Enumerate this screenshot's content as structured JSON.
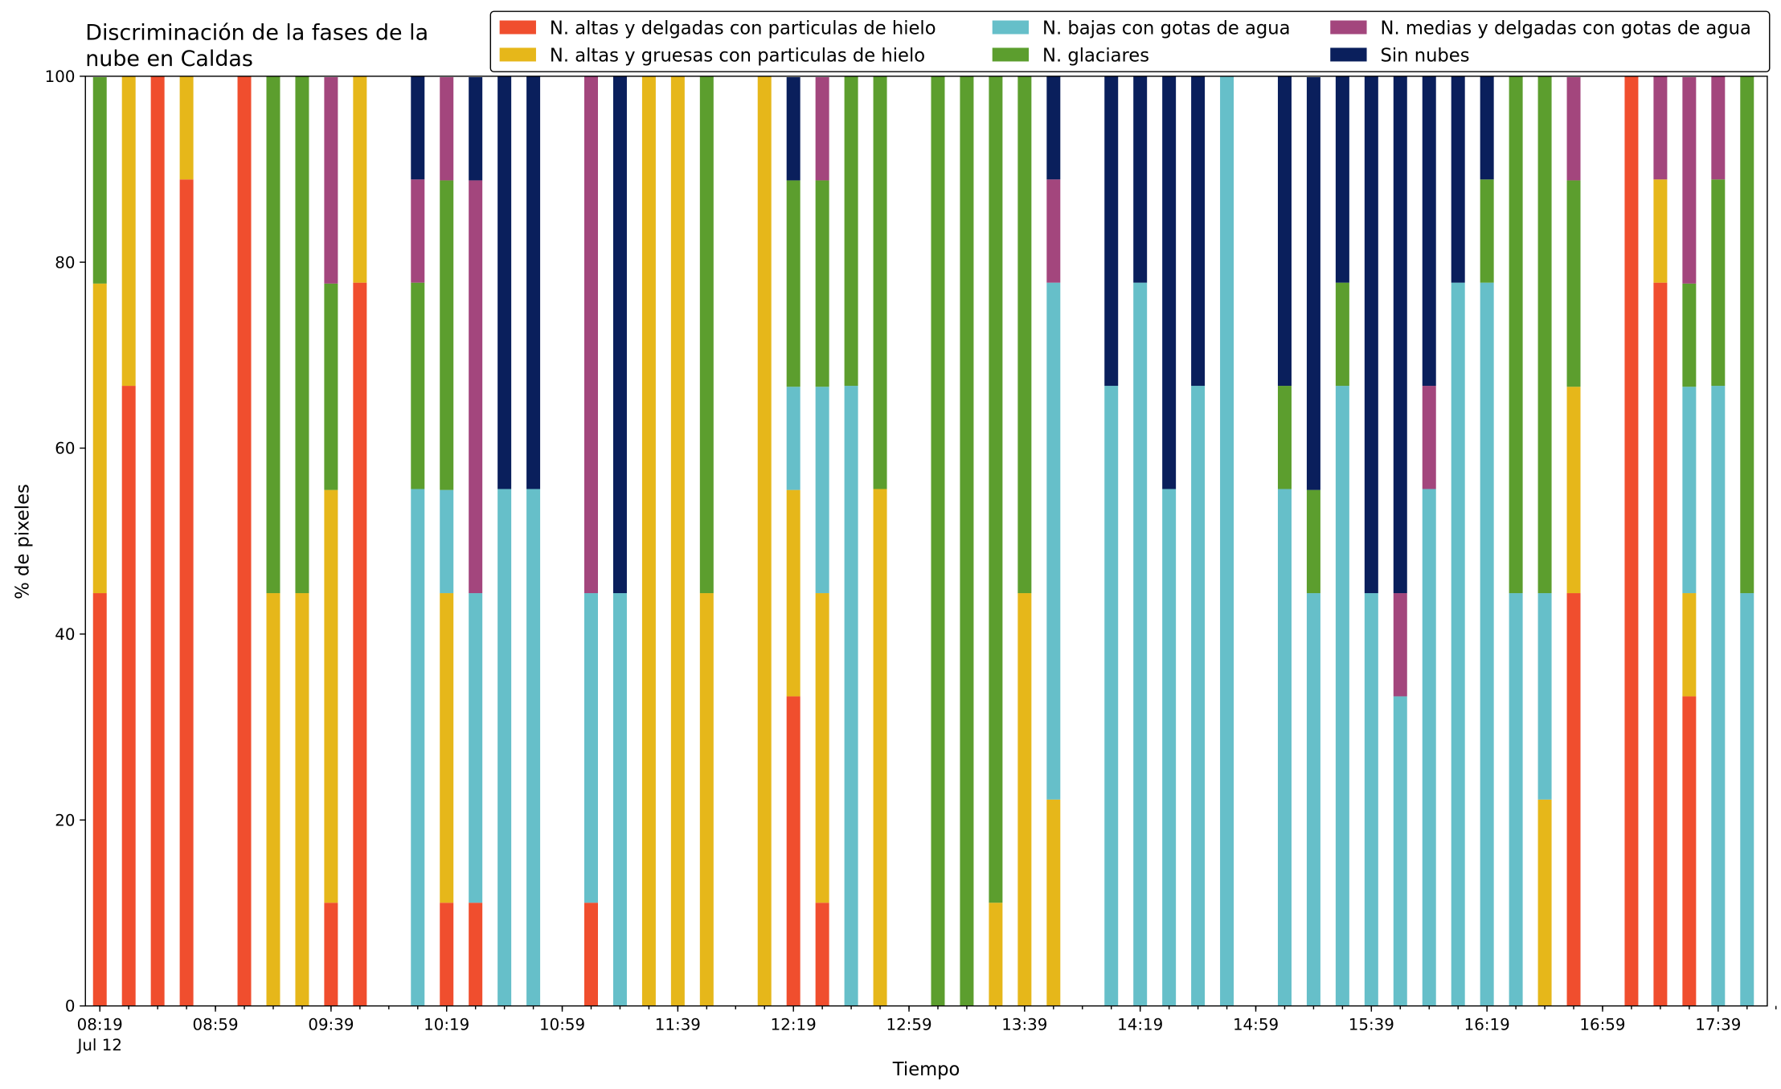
{
  "chart_data": {
    "type": "stacked_bar",
    "title": [
      "Discriminación de la fases de la",
      "nube en Caldas"
    ],
    "xlabel": "Tiempo",
    "ylabel": "% de pixeles",
    "x": [
      "08:19",
      "08:29",
      "08:39",
      "08:49",
      "08:59",
      "09:09",
      "09:19",
      "09:29",
      "09:39",
      "09:49",
      "09:59",
      "10:09",
      "10:19",
      "10:29",
      "10:39",
      "10:49",
      "10:59",
      "11:09",
      "11:19",
      "11:29",
      "11:39",
      "11:49",
      "11:59",
      "12:09",
      "12:19",
      "12:29",
      "12:39",
      "12:49",
      "12:59",
      "13:09",
      "13:19",
      "13:29",
      "13:39",
      "13:49",
      "13:59",
      "14:09",
      "14:19",
      "14:29",
      "14:39",
      "14:49",
      "14:59",
      "15:09",
      "15:19",
      "15:29",
      "15:39",
      "15:49",
      "15:59",
      "16:09",
      "16:19",
      "16:29",
      "16:39",
      "16:49",
      "16:59",
      "17:09",
      "17:19",
      "17:29",
      "17:39",
      "17:49"
    ],
    "x_date_label": "Jul 12",
    "xlim": [
      "08:14",
      "17:56"
    ],
    "xticks": [
      "08:19",
      "08:59",
      "09:39",
      "10:19",
      "10:59",
      "11:39",
      "12:19",
      "12:59",
      "13:39",
      "14:19",
      "14:59",
      "15:39",
      "16:19",
      "16:59",
      "17:39"
    ],
    "xticks_minor": [
      "08:19",
      "08:29",
      "08:39",
      "08:49",
      "08:59",
      "09:09",
      "09:19",
      "09:29",
      "09:39",
      "09:49",
      "09:59",
      "10:09",
      "10:19",
      "10:29",
      "10:39",
      "10:49",
      "10:59",
      "11:09",
      "11:19",
      "11:29",
      "11:39",
      "11:49",
      "11:59",
      "12:09",
      "12:19",
      "12:29",
      "12:39",
      "12:49",
      "12:59",
      "13:09",
      "13:19",
      "13:29",
      "13:39",
      "13:49",
      "13:59",
      "14:09",
      "14:19",
      "14:29",
      "14:39",
      "14:49",
      "14:59",
      "15:09",
      "15:19",
      "15:29",
      "15:39",
      "15:49",
      "15:59",
      "16:09",
      "16:19",
      "16:29",
      "16:39",
      "16:49",
      "16:59",
      "17:09",
      "17:19",
      "17:29",
      "17:39",
      "17:49",
      "17:59"
    ],
    "ylim": [
      0,
      100
    ],
    "yticks": [
      0,
      20,
      40,
      60,
      80,
      100
    ],
    "grid": false,
    "legend": "upper right",
    "series": [
      {
        "name": "N. altas y delgadas con particulas de hielo",
        "color": "#f04e2e",
        "values": [
          44.4,
          66.7,
          100,
          88.9,
          0,
          100,
          0,
          0,
          11.1,
          77.8,
          0,
          0,
          11.1,
          11.1,
          0,
          0,
          0,
          11.1,
          0,
          0,
          0,
          0,
          0,
          0,
          33.3,
          11.1,
          0,
          0,
          0,
          0,
          0,
          0,
          0,
          0,
          0,
          0,
          0,
          0,
          0,
          0,
          0,
          0,
          0,
          0,
          0,
          0,
          0,
          0,
          0,
          0,
          0,
          44.4,
          0,
          100,
          77.8,
          33.3,
          0,
          0
        ]
      },
      {
        "name": "N. altas y gruesas con particulas de hielo",
        "color": "#e6b71a",
        "values": [
          33.3,
          33.3,
          0,
          11.1,
          0,
          0,
          44.4,
          44.4,
          44.4,
          22.2,
          0,
          0,
          33.3,
          0,
          0,
          0,
          0,
          0,
          0,
          100,
          100,
          44.4,
          0,
          100,
          22.2,
          33.3,
          0,
          55.6,
          0,
          0,
          0,
          11.1,
          44.4,
          22.2,
          0,
          0,
          0,
          0,
          0,
          0,
          0,
          0,
          0,
          0,
          0,
          0,
          0,
          0,
          0,
          0,
          22.2,
          22.2,
          0,
          0,
          11.1,
          11.1,
          0,
          0
        ]
      },
      {
        "name": "N. bajas con gotas de agua",
        "color": "#66bfc9",
        "values": [
          0,
          0,
          0,
          0,
          0,
          0,
          0,
          0,
          0,
          0,
          0,
          55.6,
          11.1,
          33.3,
          55.6,
          55.6,
          0,
          33.3,
          44.4,
          0,
          0,
          0,
          0,
          0,
          11.1,
          22.2,
          66.7,
          0,
          0,
          0,
          0,
          0,
          0,
          55.6,
          0,
          66.7,
          77.8,
          55.6,
          66.7,
          100,
          0,
          55.6,
          44.4,
          66.7,
          44.4,
          33.3,
          55.6,
          77.8,
          77.8,
          44.4,
          22.2,
          0,
          0,
          0,
          0,
          22.2,
          66.7,
          44.4
        ]
      },
      {
        "name": "N. glaciares",
        "color": "#5c9e2e",
        "values": [
          22.2,
          0,
          0,
          0,
          0,
          0,
          55.6,
          55.6,
          22.2,
          0,
          0,
          22.2,
          33.3,
          0,
          0,
          0,
          0,
          0,
          0,
          0,
          0,
          55.6,
          0,
          0,
          22.2,
          22.2,
          33.3,
          44.4,
          0,
          100,
          100,
          88.9,
          55.6,
          0,
          0,
          0,
          0,
          0,
          0,
          0,
          0,
          11.1,
          11.1,
          11.1,
          0,
          0,
          0,
          0,
          11.1,
          55.6,
          55.6,
          22.2,
          0,
          0,
          0,
          11.1,
          22.2,
          55.6
        ]
      },
      {
        "name": "N. medias y delgadas con gotas de agua",
        "color": "#a3467d",
        "values": [
          0,
          0,
          0,
          0,
          0,
          0,
          0,
          0,
          22.2,
          0,
          0,
          11.1,
          11.1,
          44.4,
          0,
          0,
          0,
          55.6,
          0,
          0,
          0,
          0,
          0,
          0,
          0,
          11.1,
          0,
          0,
          0,
          0,
          0,
          0,
          0,
          11.1,
          0,
          0,
          0,
          0,
          0,
          0,
          0,
          0,
          0,
          0,
          0,
          11.1,
          11.1,
          0,
          0,
          0,
          0,
          11.1,
          0,
          0,
          11.1,
          22.2,
          11.1,
          0
        ]
      },
      {
        "name": "Sin nubes",
        "color": "#0a1f5c",
        "values": [
          0,
          0,
          0,
          0,
          0,
          0,
          0,
          0,
          0,
          0,
          0,
          11.1,
          0,
          11.1,
          44.4,
          44.4,
          0,
          0,
          55.6,
          0,
          0,
          0,
          0,
          0,
          11.1,
          0,
          0,
          0,
          0,
          0,
          0,
          0,
          0,
          11.1,
          0,
          33.3,
          22.2,
          44.4,
          33.3,
          0,
          0,
          33.3,
          44.4,
          22.2,
          55.6,
          55.6,
          33.3,
          22.2,
          11.1,
          0,
          0,
          0,
          0,
          0,
          0,
          0,
          0,
          0
        ]
      }
    ]
  }
}
